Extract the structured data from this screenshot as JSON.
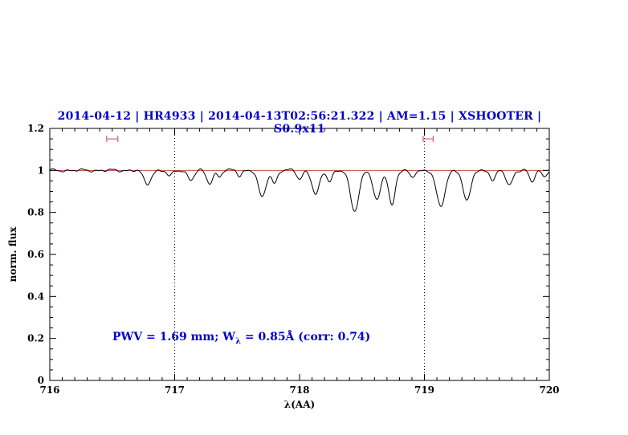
{
  "title": {
    "text": "2014-04-12 | HR4933 | 2014-04-13T02:56:21.322 | AM=1.15 | XSHOOTER | S0.9x11",
    "color": "#0000cc"
  },
  "annotation": {
    "prefix": "PWV = 1.69 mm; W",
    "sub": "λ",
    "suffix": " = 0.85Å (corr: 0.74)",
    "color": "#0000cc"
  },
  "chart_data": {
    "type": "line",
    "title": "2014-04-12 | HR4933 | 2014-04-13T02:56:21.322 | AM=1.15 | XSHOOTER | S0.9x11",
    "xlabel": "λ(AA)",
    "ylabel": "norm. flux",
    "xlim": [
      716,
      720
    ],
    "ylim": [
      0,
      1.2
    ],
    "x_major_ticks": [
      716,
      717,
      718,
      719,
      720
    ],
    "x_tick_labels": [
      "716",
      "717",
      "718",
      "719",
      "720"
    ],
    "x_minor_step": 0.1,
    "y_major_ticks": [
      0,
      0.2,
      0.4,
      0.6,
      0.8,
      1,
      1.2
    ],
    "y_tick_labels": [
      "0",
      "0.2",
      "0.4",
      "0.6",
      "0.8",
      "1",
      "1.2"
    ],
    "y_minor_step": 0.05,
    "grid": "off",
    "legend": "none",
    "dotted_vlines": [
      717,
      719
    ],
    "continuum_line": {
      "y": 1.0,
      "color": "#cc4444"
    },
    "range_markers": [
      {
        "x_center": 716.5,
        "half_width": 0.045,
        "y": 1.15,
        "cap_half_height": 0.015,
        "color": "#cc6666"
      },
      {
        "x_center": 719.03,
        "half_width": 0.04,
        "y": 1.15,
        "cap_half_height": 0.015,
        "color": "#cc6666"
      }
    ],
    "pwv_annotation": {
      "text": "PWV = 1.69 mm; W_λ = 0.85Å (corr: 0.74)",
      "x": 716.5,
      "y": 0.2,
      "color": "#0000cc"
    },
    "series": [
      {
        "name": "normalized telluric spectrum",
        "color": "#000000",
        "continuum_level": 1.0,
        "noise_amplitude": 0.004,
        "sample_step": 0.005,
        "absorption_lines": [
          {
            "center": 716.78,
            "depth": 0.065,
            "fwhm": 0.07
          },
          {
            "center": 716.96,
            "depth": 0.03,
            "fwhm": 0.05
          },
          {
            "center": 717.13,
            "depth": 0.045,
            "fwhm": 0.06
          },
          {
            "center": 717.28,
            "depth": 0.06,
            "fwhm": 0.06
          },
          {
            "center": 717.36,
            "depth": 0.03,
            "fwhm": 0.04
          },
          {
            "center": 717.52,
            "depth": 0.025,
            "fwhm": 0.04
          },
          {
            "center": 717.7,
            "depth": 0.13,
            "fwhm": 0.07
          },
          {
            "center": 717.8,
            "depth": 0.06,
            "fwhm": 0.05
          },
          {
            "center": 718.0,
            "depth": 0.04,
            "fwhm": 0.05
          },
          {
            "center": 718.13,
            "depth": 0.115,
            "fwhm": 0.07
          },
          {
            "center": 718.24,
            "depth": 0.05,
            "fwhm": 0.05
          },
          {
            "center": 718.44,
            "depth": 0.195,
            "fwhm": 0.08
          },
          {
            "center": 718.62,
            "depth": 0.145,
            "fwhm": 0.07
          },
          {
            "center": 718.74,
            "depth": 0.165,
            "fwhm": 0.06
          },
          {
            "center": 718.9,
            "depth": 0.035,
            "fwhm": 0.05
          },
          {
            "center": 719.13,
            "depth": 0.175,
            "fwhm": 0.08
          },
          {
            "center": 719.34,
            "depth": 0.15,
            "fwhm": 0.07
          },
          {
            "center": 719.55,
            "depth": 0.05,
            "fwhm": 0.05
          },
          {
            "center": 719.68,
            "depth": 0.07,
            "fwhm": 0.06
          },
          {
            "center": 719.86,
            "depth": 0.055,
            "fwhm": 0.05
          },
          {
            "center": 719.96,
            "depth": 0.03,
            "fwhm": 0.04
          }
        ]
      }
    ]
  }
}
